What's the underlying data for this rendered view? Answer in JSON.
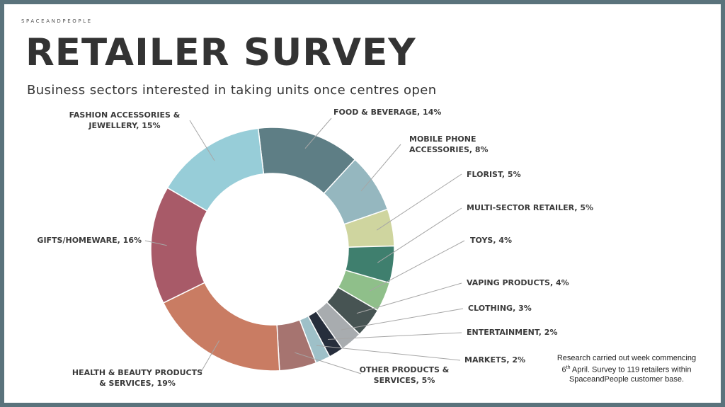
{
  "header": {
    "brand": "SPACEANDPEOPLE",
    "title": "RETAILER SURVEY",
    "subtitle": "Business sectors interested in taking units once centres open"
  },
  "footnote": {
    "line1": "Research carried out week commencing",
    "day": "6",
    "day_suffix": "th",
    "line2_rest": " April. Survey to 119 retailers within",
    "line3": "SpaceandPeople customer base."
  },
  "chart_data": {
    "type": "pie",
    "donut": true,
    "title": "Business sectors interested in taking units once centres open",
    "slices": [
      {
        "label": "FOOD & BEVERAGE, 14%",
        "name": "FOOD & BEVERAGE",
        "value": 14,
        "color": "#5e7e85"
      },
      {
        "label": "MOBILE PHONE ACCESSORIES, 8%",
        "name": "MOBILE PHONE ACCESSORIES",
        "value": 8,
        "color": "#95b7bf"
      },
      {
        "label": "FLORIST, 5%",
        "name": "FLORIST",
        "value": 5,
        "color": "#cfd59f"
      },
      {
        "label": "MULTI-SECTOR RETAILER, 5%",
        "name": "MULTI-SECTOR RETAILER",
        "value": 5,
        "color": "#3f7f6e"
      },
      {
        "label": "TOYS, 4%",
        "name": "TOYS",
        "value": 4,
        "color": "#8fbf8a"
      },
      {
        "label": "VAPING PRODUCTS, 4%",
        "name": "VAPING PRODUCTS",
        "value": 4,
        "color": "#475453"
      },
      {
        "label": "CLOTHING, 3%",
        "name": "CLOTHING",
        "value": 3,
        "color": "#a8acaf"
      },
      {
        "label": "ENTERTAINMENT, 2%",
        "name": "ENTERTAINMENT",
        "value": 2,
        "color": "#262e3c"
      },
      {
        "label": "MARKETS, 2%",
        "name": "MARKETS",
        "value": 2,
        "color": "#9ec0c8"
      },
      {
        "label": "OTHER PRODUCTS & SERVICES, 5%",
        "name": "OTHER PRODUCTS & SERVICES",
        "value": 5,
        "color": "#a67470"
      },
      {
        "label": "HEALTH & BEAUTY PRODUCTS & SERVICES, 19%",
        "name": "HEALTH & BEAUTY PRODUCTS & SERVICES",
        "value": 19,
        "color": "#c97c63"
      },
      {
        "label": "GIFTS/HOMEWARE, 16%",
        "name": "GIFTS/HOMEWARE",
        "value": 16,
        "color": "#a85a68"
      },
      {
        "label": "FASHION ACCESSORIES & JEWELLERY, 15%",
        "name": "FASHION ACCESSORIES & JEWELLERY",
        "value": 15,
        "color": "#97cdd8"
      }
    ],
    "legend": "none"
  }
}
